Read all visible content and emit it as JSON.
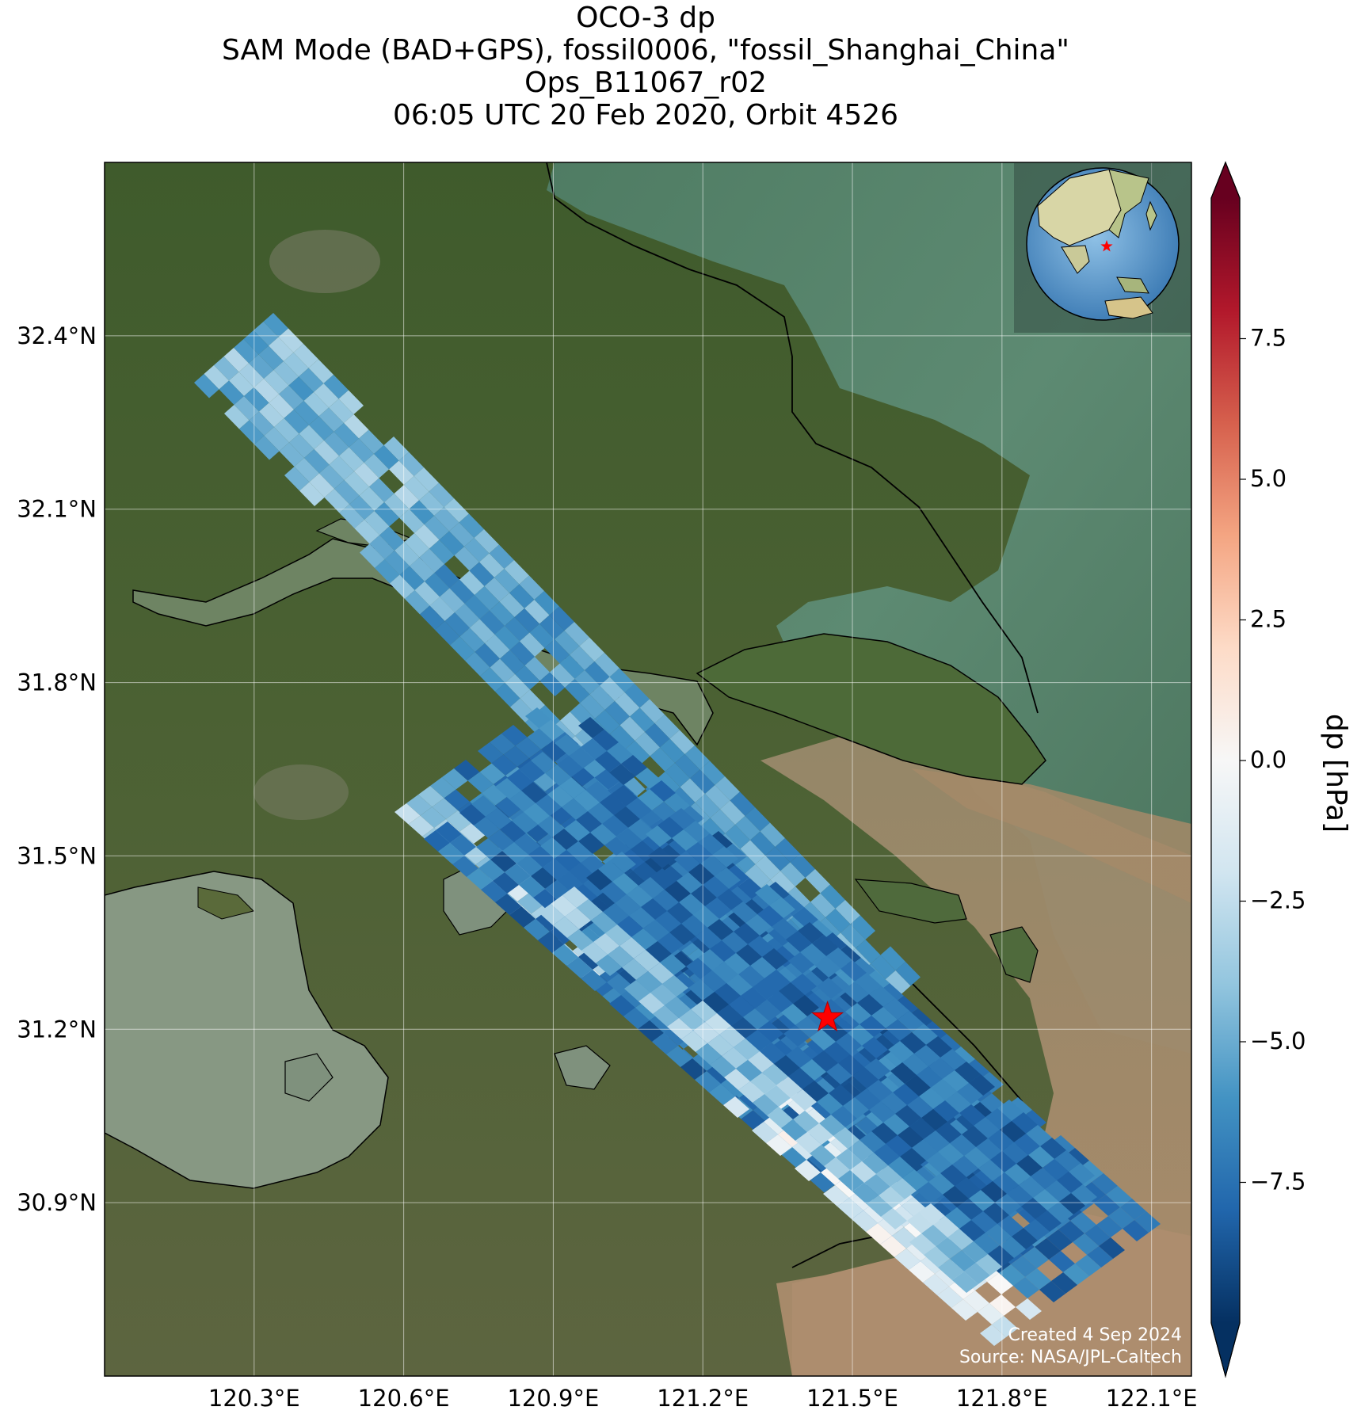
{
  "title": {
    "line1": "OCO-3 dp",
    "line2": "SAM Mode (BAD+GPS), fossil0006, \"fossil_Shanghai_China\"",
    "line3": "Ops_B11067_r02",
    "line4": "06:05 UTC 20 Feb 2020, Orbit 4526"
  },
  "map": {
    "lat_ticks": [
      "32.4°N",
      "32.1°N",
      "31.8°N",
      "31.5°N",
      "31.2°N",
      "30.9°N"
    ],
    "lon_ticks": [
      "120.3°E",
      "120.6°E",
      "120.9°E",
      "121.2°E",
      "121.5°E",
      "121.8°E",
      "122.1°E"
    ],
    "lat_values": [
      32.4,
      32.1,
      31.8,
      31.5,
      31.2,
      30.9
    ],
    "lon_values": [
      120.3,
      120.6,
      120.9,
      121.2,
      121.5,
      121.8,
      122.1
    ],
    "extent": {
      "lon": [
        120.0,
        122.18
      ],
      "lat": [
        30.6,
        32.7
      ]
    },
    "target_marker": {
      "name": "red-star",
      "lon": 121.45,
      "lat": 31.22,
      "color": "#ff0000"
    },
    "inset_globe": "globe-inset-asia",
    "credit_line1": "Created 4 Sep 2024",
    "credit_line2": "Source: NASA/JPL-Caltech",
    "colors": {
      "land": "#5a6a3a",
      "forest": "#3f5a2a",
      "sea_green": "#4e7a62",
      "sea_brown": "#a9896a",
      "lake": "#869880",
      "urban": "#8a8677"
    }
  },
  "colorbar": {
    "label": "dp [hPa]",
    "ticks": [
      "7.5",
      "5.0",
      "2.5",
      "0.0",
      "−2.5",
      "−5.0",
      "−7.5"
    ],
    "tick_values": [
      7.5,
      5.0,
      2.5,
      0.0,
      -2.5,
      -5.0,
      -7.5
    ],
    "range": [
      -10,
      10
    ],
    "cmap": "RdBu_r",
    "extend": "both"
  }
}
